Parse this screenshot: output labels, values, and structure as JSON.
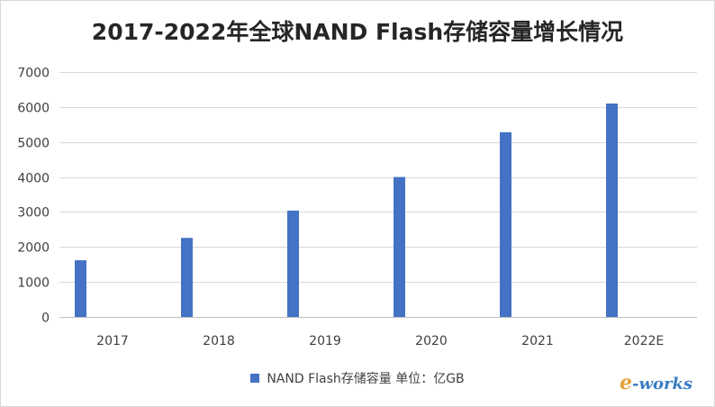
{
  "chart_data": {
    "type": "bar",
    "title": "2017-2022年全球NAND Flash存储容量增长情况",
    "categories": [
      "2017",
      "2018",
      "2019",
      "2020",
      "2021",
      "2022E"
    ],
    "series": [
      {
        "name": "NAND Flash存储容量 单位：亿GB",
        "values": [
          1620,
          2260,
          3040,
          4000,
          5280,
          6100
        ],
        "color": "#4472c4"
      }
    ],
    "ylim": [
      0,
      7000
    ],
    "yticks": [
      0,
      1000,
      2000,
      3000,
      4000,
      5000,
      6000,
      7000
    ],
    "grid": true,
    "legend_position": "bottom"
  },
  "watermark": {
    "mark": "e",
    "text": "-works"
  }
}
